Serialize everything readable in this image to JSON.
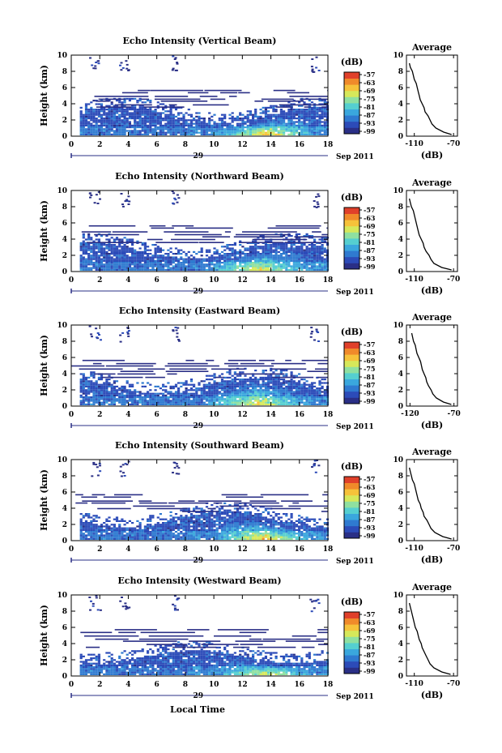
{
  "figure": {
    "bottom_label": "Local Time",
    "date_label": "Sep 2011",
    "day_label": "29",
    "colorbar_unit": "(dB)",
    "colorbar_ticks": [
      "-57",
      "-63",
      "-69",
      "-75",
      "-81",
      "-87",
      "-93",
      "-99"
    ],
    "colors": {
      "colormap": [
        "#2a2f86",
        "#2c4bb8",
        "#2f7ad0",
        "#3aa7dd",
        "#55cfd0",
        "#8fe0a0",
        "#d6e85a",
        "#f6c23a",
        "#f08a2a",
        "#e0402a"
      ],
      "axis": "#000000",
      "time_bar": "#2a2f86"
    }
  },
  "chart_data": [
    {
      "type": "heatmap",
      "title": "Echo Intensity (Vertical Beam)",
      "xlabel": "",
      "ylabel": "Height (km)",
      "xlim": [
        0,
        18
      ],
      "ylim": [
        0,
        10
      ],
      "xticks": [
        "0",
        "2",
        "4",
        "6",
        "8",
        "10",
        "12",
        "14",
        "16",
        "18"
      ],
      "yticks": [
        "0",
        "2",
        "4",
        "6",
        "8",
        "10"
      ],
      "colorbar": {
        "label": "(dB)",
        "range": [
          -99,
          -57
        ]
      },
      "approx_layers": {
        "strong_echo_top_km": [
          1.5,
          3.5
        ],
        "max_intensity_dB": -66,
        "max_near_hours": [
          12,
          15
        ],
        "scattered_high_echo_km": [
          8,
          10
        ]
      },
      "profile": {
        "title": "Average",
        "xlabel": "(dB)",
        "xticks": [
          "-110",
          "-70"
        ],
        "xlim": [
          -118,
          -66
        ],
        "yticks": [
          "0",
          "2",
          "4",
          "6",
          "8",
          "10"
        ],
        "ylim": [
          0,
          10
        ],
        "height_km": [
          0.2,
          0.5,
          1.0,
          1.5,
          2.0,
          2.5,
          3.0,
          3.5,
          4.0,
          4.5,
          5.0,
          5.5,
          6.0,
          6.5,
          7.0,
          7.5,
          8.0,
          8.5,
          9.0
        ],
        "db": [
          -72,
          -80,
          -88,
          -92,
          -94,
          -96,
          -99,
          -100,
          -102,
          -104,
          -105,
          -106,
          -107,
          -108,
          -110,
          -111,
          -112,
          -114,
          -115
        ]
      }
    },
    {
      "type": "heatmap",
      "title": "Echo Intensity (Northward Beam)",
      "xlabel": "",
      "ylabel": "Height (km)",
      "xlim": [
        0,
        18
      ],
      "ylim": [
        0,
        10
      ],
      "xticks": [
        "0",
        "2",
        "4",
        "6",
        "8",
        "10",
        "12",
        "14",
        "16",
        "18"
      ],
      "yticks": [
        "0",
        "2",
        "4",
        "6",
        "8",
        "10"
      ],
      "colorbar": {
        "label": "(dB)",
        "range": [
          -99,
          -57
        ]
      },
      "approx_layers": {
        "strong_echo_top_km": [
          1.5,
          3.5
        ],
        "max_intensity_dB": -69,
        "max_near_hours": [
          11,
          15
        ],
        "scattered_high_echo_km": [
          8,
          10
        ]
      },
      "profile": {
        "title": "Average",
        "xlabel": "(dB)",
        "xticks": [
          "-110",
          "-70"
        ],
        "xlim": [
          -118,
          -66
        ],
        "yticks": [
          "0",
          "2",
          "4",
          "6",
          "8",
          "10"
        ],
        "ylim": [
          0,
          10
        ],
        "height_km": [
          0.2,
          0.5,
          1.0,
          1.5,
          2.0,
          2.5,
          3.0,
          3.5,
          4.0,
          4.5,
          5.0,
          5.5,
          6.0,
          6.5,
          7.0,
          7.5,
          8.0,
          8.5,
          9.0
        ],
        "db": [
          -72,
          -82,
          -90,
          -93,
          -95,
          -98,
          -100,
          -101,
          -103,
          -105,
          -106,
          -107,
          -108,
          -109,
          -110,
          -111,
          -113,
          -114,
          -115
        ]
      }
    },
    {
      "type": "heatmap",
      "title": "Echo Intensity (Eastward Beam)",
      "xlabel": "",
      "ylabel": "Height (km)",
      "xlim": [
        0,
        18
      ],
      "ylim": [
        0,
        10
      ],
      "xticks": [
        "0",
        "2",
        "4",
        "6",
        "8",
        "10",
        "12",
        "14",
        "16",
        "18"
      ],
      "yticks": [
        "0",
        "2",
        "4",
        "6",
        "8",
        "10"
      ],
      "colorbar": {
        "label": "(dB)",
        "range": [
          -99,
          -57
        ]
      },
      "approx_layers": {
        "strong_echo_top_km": [
          1.5,
          3.5
        ],
        "max_intensity_dB": -69,
        "max_near_hours": [
          11,
          15
        ],
        "scattered_high_echo_km": [
          8,
          10
        ]
      },
      "profile": {
        "title": "Average",
        "xlabel": "(dB)",
        "xticks": [
          "-120",
          "-70"
        ],
        "xlim": [
          -124,
          -66
        ],
        "yticks": [
          "0",
          "2",
          "4",
          "6",
          "8",
          "10"
        ],
        "ylim": [
          0,
          10
        ],
        "height_km": [
          0.2,
          0.5,
          1.0,
          1.5,
          2.0,
          2.5,
          3.0,
          3.5,
          4.0,
          4.5,
          5.0,
          5.5,
          6.0,
          6.5,
          7.0,
          7.5,
          8.0,
          8.5,
          9.0
        ],
        "db": [
          -73,
          -82,
          -90,
          -94,
          -96,
          -99,
          -101,
          -102,
          -104,
          -106,
          -107,
          -108,
          -110,
          -112,
          -113,
          -114,
          -116,
          -117,
          -118
        ]
      }
    },
    {
      "type": "heatmap",
      "title": "Echo Intensity (Southward Beam)",
      "xlabel": "",
      "ylabel": "Height (km)",
      "xlim": [
        0,
        18
      ],
      "ylim": [
        0,
        10
      ],
      "xticks": [
        "0",
        "2",
        "4",
        "6",
        "8",
        "10",
        "12",
        "14",
        "16",
        "18"
      ],
      "yticks": [
        "0",
        "2",
        "4",
        "6",
        "8",
        "10"
      ],
      "colorbar": {
        "label": "(dB)",
        "range": [
          -99,
          -57
        ]
      },
      "approx_layers": {
        "strong_echo_top_km": [
          1.5,
          3.5
        ],
        "max_intensity_dB": -66,
        "max_near_hours": [
          12,
          15
        ],
        "scattered_high_echo_km": [
          8,
          10
        ]
      },
      "profile": {
        "title": "Average",
        "xlabel": "(dB)",
        "xticks": [
          "-110",
          "-70"
        ],
        "xlim": [
          -118,
          -66
        ],
        "yticks": [
          "0",
          "2",
          "4",
          "6",
          "8",
          "10"
        ],
        "ylim": [
          0,
          10
        ],
        "height_km": [
          0.2,
          0.5,
          1.0,
          1.5,
          2.0,
          2.5,
          3.0,
          3.5,
          4.0,
          4.5,
          5.0,
          5.5,
          6.0,
          6.5,
          7.0,
          7.5,
          8.0,
          8.5,
          9.0
        ],
        "db": [
          -72,
          -81,
          -89,
          -93,
          -95,
          -97,
          -100,
          -101,
          -103,
          -104,
          -106,
          -107,
          -108,
          -109,
          -110,
          -112,
          -113,
          -114,
          -115
        ]
      }
    },
    {
      "type": "heatmap",
      "title": "Echo Intensity (Westward Beam)",
      "xlabel": "Local Time",
      "ylabel": "Height (km)",
      "xlim": [
        0,
        18
      ],
      "ylim": [
        0,
        10
      ],
      "xticks": [
        "0",
        "2",
        "4",
        "6",
        "8",
        "10",
        "12",
        "14",
        "16",
        "18"
      ],
      "yticks": [
        "0",
        "2",
        "4",
        "6",
        "8",
        "10"
      ],
      "colorbar": {
        "label": "(dB)",
        "range": [
          -99,
          -57
        ]
      },
      "approx_layers": {
        "strong_echo_top_km": [
          1.5,
          3.0
        ],
        "max_intensity_dB": -69,
        "max_near_hours": [
          12,
          15
        ],
        "scattered_high_echo_km": [
          8,
          10
        ]
      },
      "profile": {
        "title": "Average",
        "xlabel": "(dB)",
        "xticks": [
          "-110",
          "-70"
        ],
        "xlim": [
          -118,
          -66
        ],
        "yticks": [
          "0",
          "2",
          "4",
          "6",
          "8",
          "10"
        ],
        "ylim": [
          0,
          10
        ],
        "height_km": [
          0.2,
          0.5,
          1.0,
          1.5,
          2.0,
          2.5,
          3.0,
          3.5,
          4.0,
          4.5,
          5.0,
          5.5,
          6.0,
          6.5,
          7.0,
          7.5,
          8.0,
          8.5,
          9.0
        ],
        "db": [
          -73,
          -82,
          -90,
          -94,
          -96,
          -98,
          -100,
          -102,
          -103,
          -105,
          -106,
          -107,
          -109,
          -110,
          -111,
          -112,
          -113,
          -114,
          -115
        ]
      }
    }
  ]
}
